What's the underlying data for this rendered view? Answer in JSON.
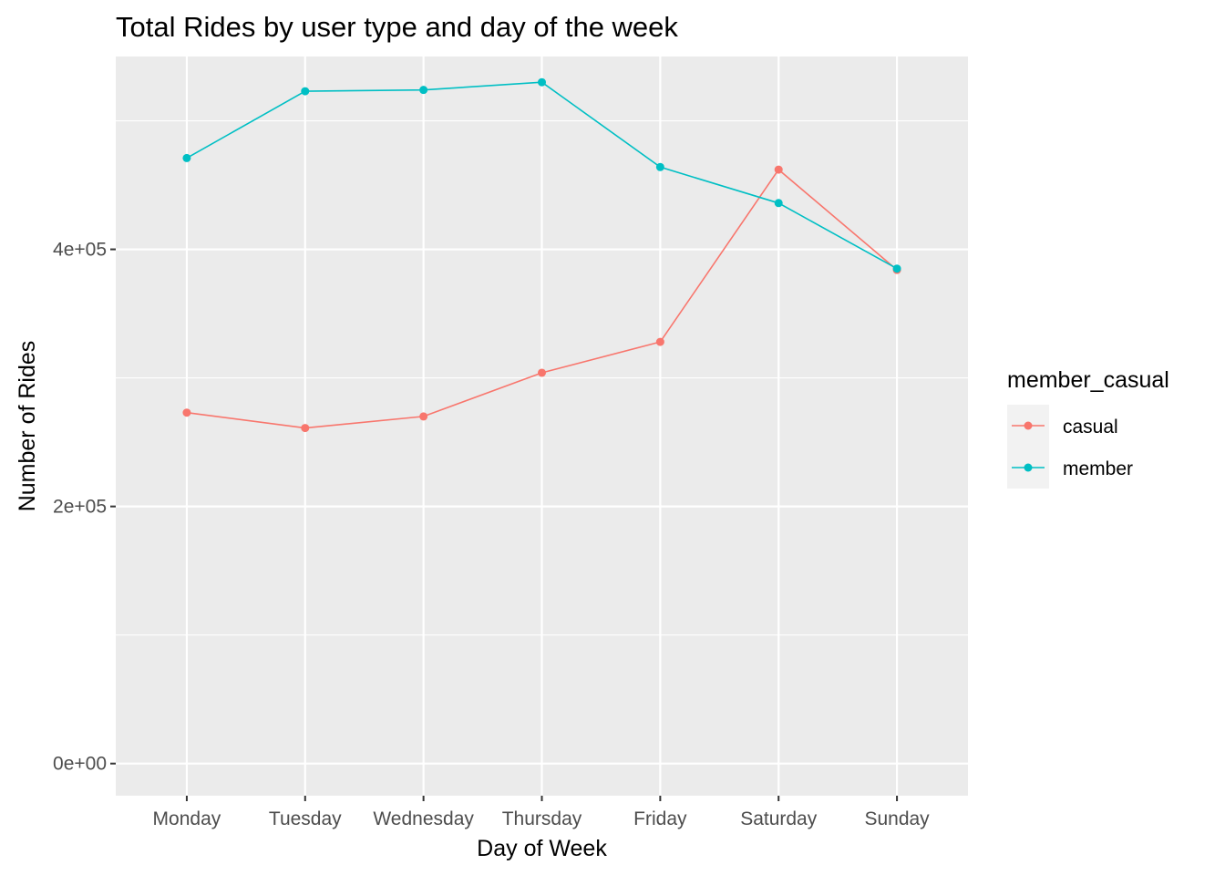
{
  "chart_data": {
    "type": "line",
    "title": "Total Rides by user type and day of the week",
    "xlabel": "Day of Week",
    "ylabel": "Number of Rides",
    "categories": [
      "Monday",
      "Tuesday",
      "Wednesday",
      "Thursday",
      "Friday",
      "Saturday",
      "Sunday"
    ],
    "ylim": [
      -25000,
      550000
    ],
    "y_ticks": [
      0,
      200000,
      400000
    ],
    "y_tick_labels": [
      "0e+00",
      "2e+05",
      "4e+05"
    ],
    "y_minor_ticks": [
      100000,
      300000,
      500000
    ],
    "grid": true,
    "legend": {
      "title": "member_casual",
      "position": "right"
    },
    "series": [
      {
        "name": "casual",
        "color": "#F8766D",
        "values": [
          273000,
          261000,
          270000,
          304000,
          328000,
          462000,
          384000
        ]
      },
      {
        "name": "member",
        "color": "#00BFC4",
        "values": [
          471000,
          523000,
          524000,
          530000,
          464000,
          436000,
          385000
        ]
      }
    ],
    "panel_background": "#EBEBEB",
    "grid_color": "#FFFFFF"
  }
}
